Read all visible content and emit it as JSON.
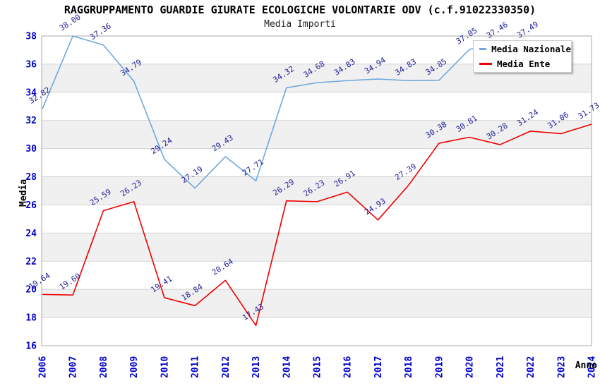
{
  "chart_data": {
    "type": "line",
    "title": "RAGGRUPPAMENTO GUARDIE GIURATE ECOLOGICHE VOLONTARIE ODV (c.f.91022330350)",
    "subtitle": "Media Importi",
    "xlabel": "Anno",
    "ylabel": "Media",
    "x": [
      2006,
      2007,
      2008,
      2009,
      2010,
      2011,
      2012,
      2013,
      2014,
      2015,
      2016,
      2017,
      2018,
      2019,
      2020,
      2021,
      2022,
      2023,
      2024
    ],
    "series": [
      {
        "name": "Media Nazionale",
        "color": "#6fa8dc",
        "values": [
          32.82,
          38.0,
          37.36,
          34.79,
          29.24,
          27.19,
          29.43,
          27.71,
          34.32,
          34.68,
          34.83,
          34.94,
          34.83,
          34.85,
          37.05,
          37.46,
          37.49
        ]
      },
      {
        "name": "Media Ente",
        "color": "#ee0000",
        "values": [
          19.64,
          19.6,
          25.59,
          26.23,
          19.41,
          18.84,
          20.64,
          17.43,
          26.29,
          26.23,
          26.91,
          24.93,
          27.39,
          30.38,
          30.81,
          30.28,
          31.24,
          31.06,
          31.73
        ]
      }
    ],
    "ylim": [
      16,
      38
    ],
    "ytick_step": 2,
    "grid": "horizontal gridlines, alternating white/gray bands",
    "legend_position": "top-right",
    "colors": {
      "tick_labels": "#0000cc",
      "value_labels": "#22229a",
      "band_gray": "#f0f0f0",
      "gridline": "#d4d4d4",
      "frame": "#a8a8a8"
    },
    "value_label_format": "2 decimals, rotated"
  }
}
